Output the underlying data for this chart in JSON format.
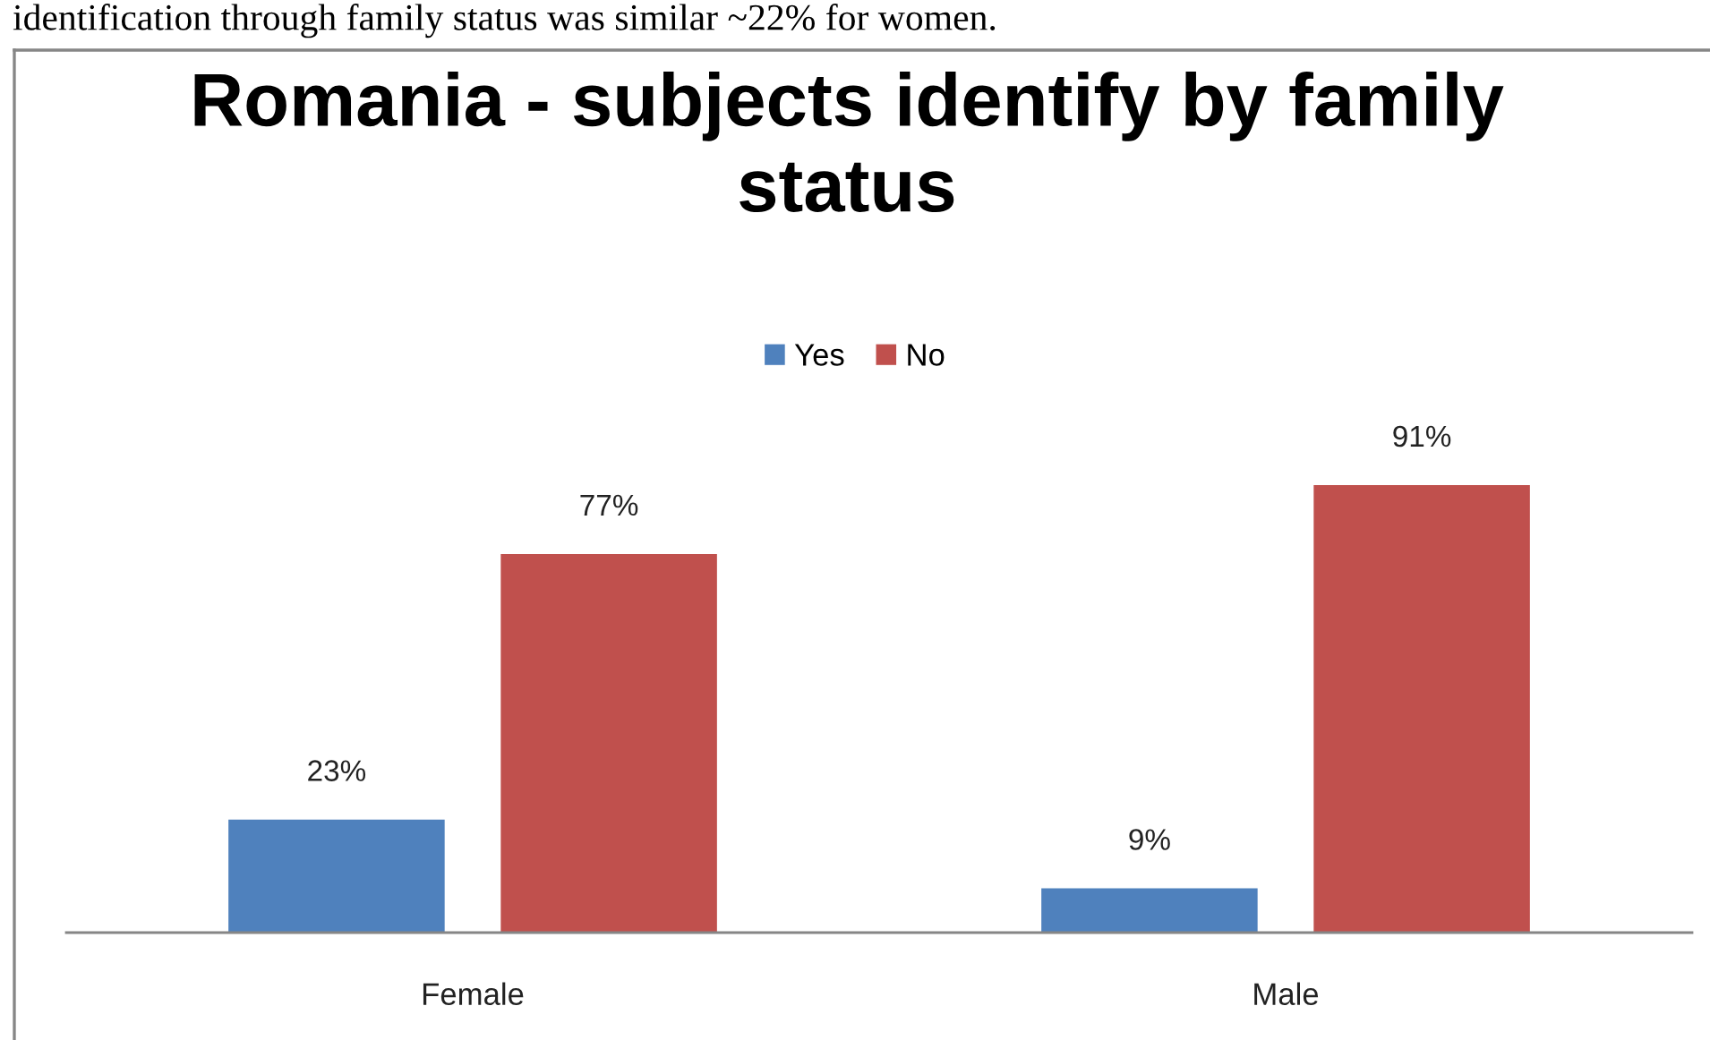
{
  "chart_data": {
    "type": "bar",
    "title": "Romania - subjects identify by family status",
    "categories": [
      "Female",
      "Male"
    ],
    "series": [
      {
        "name": "Yes",
        "color": "#4f81bd",
        "values": [
          23,
          9
        ],
        "value_labels": [
          "23%",
          "9%"
        ]
      },
      {
        "name": "No",
        "color": "#c0504d",
        "values": [
          77,
          91
        ],
        "value_labels": [
          "77%",
          "91%"
        ]
      }
    ],
    "legend": "top",
    "tick_labels": "x",
    "annotations": [
      "identification through family status was similar ~22% for women."
    ]
  }
}
